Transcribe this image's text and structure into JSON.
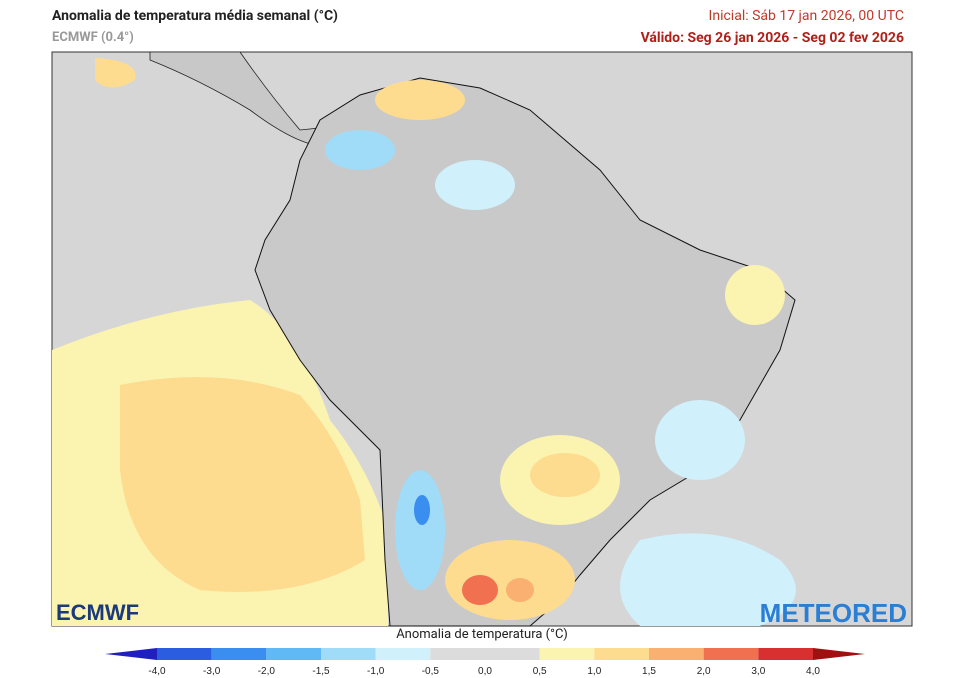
{
  "header": {
    "title": "Anomalia de temperatura média semanal (°C)",
    "subtitle": "ECMWF (0.4°)",
    "initial": "Inicial: Sáb 17 jan 2026, 00 UTC",
    "valid": "Válido: Seg 26 jan 2026 - Seg 02 fev 2026"
  },
  "logos": {
    "left": "ECMWF",
    "right": "METEORED"
  },
  "colorbar": {
    "label": "Anomalia de temperatura (°C)",
    "ticks": [
      "-4,0",
      "-3,0",
      "-2,0",
      "-1,5",
      "-1,0",
      "-0,5",
      "0,0",
      "0,5",
      "1,0",
      "1,5",
      "2,0",
      "3,0",
      "4,0"
    ]
  }
}
